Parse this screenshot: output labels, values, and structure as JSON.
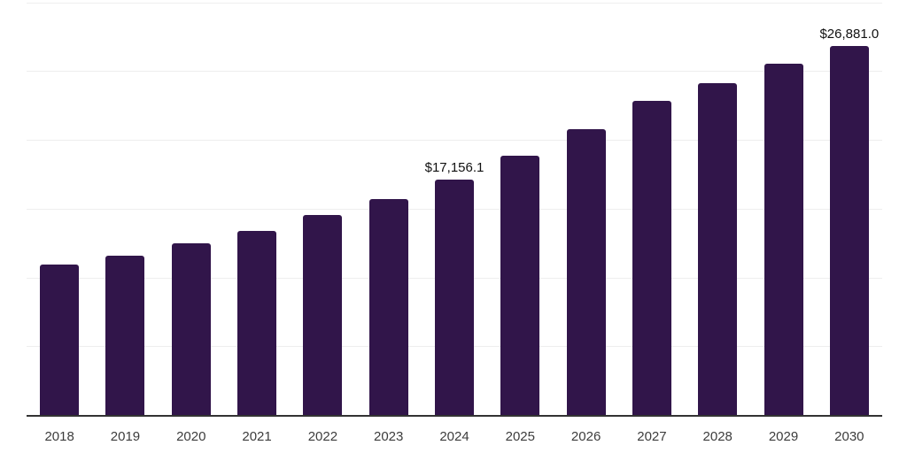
{
  "chart_data": {
    "type": "bar",
    "title": "",
    "xlabel": "",
    "ylabel": "",
    "categories": [
      "2018",
      "2019",
      "2020",
      "2021",
      "2022",
      "2023",
      "2024",
      "2025",
      "2026",
      "2027",
      "2028",
      "2029",
      "2030"
    ],
    "values": [
      10950,
      11600,
      12480,
      13440,
      14550,
      15730,
      17156.1,
      18870,
      20820,
      22870,
      24160,
      25550,
      26881.0
    ],
    "data_labels": [
      {
        "index": 6,
        "text": "$17,156.1"
      },
      {
        "index": 12,
        "text": "$26,881.0"
      }
    ],
    "ylim": [
      0,
      30000
    ],
    "grid_step": 5000,
    "grid": true,
    "legend": false,
    "colors": {
      "bar": "#31154A",
      "gridline": "#eeeeee",
      "axis_line": "#333333",
      "tick_label": "#3c3c3c",
      "data_label": "#111111",
      "background": "#ffffff"
    }
  }
}
